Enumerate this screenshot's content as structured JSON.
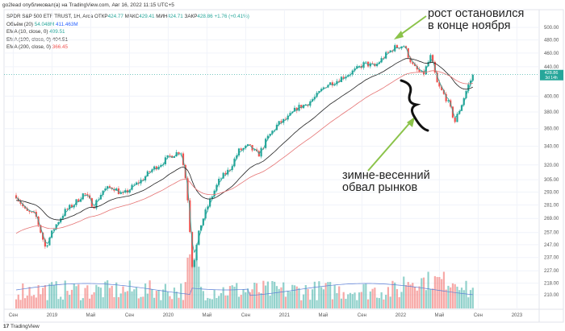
{
  "header": "go2lead опубликовал(а) на TradingView.com, Авг 16, 2022 11:15 UTC+5",
  "legend": {
    "symbol": "SPDR S&P 500 ETF TRUST, 1H, Arca",
    "open_label": "ОТКР",
    "open": "424.77",
    "high_label": "МАКС",
    "high": "429.41",
    "low_label": "МИН",
    "low": "424.71",
    "close_label": "ЗАКР",
    "close": "428.86",
    "change": "+1.76 (+0.41%)",
    "volume_label": "Объём (20)",
    "volume": "54.048M",
    "volume_ma": "411.463M",
    "ema10_label": "EMA (10, close, 0)",
    "ema10": "409.51",
    "ema100_label": "EMA (100, close, 0)",
    "ema100": "404.51",
    "ema200_label": "EMA (200, close, 0)",
    "ema200": "366.45"
  },
  "price_tag": {
    "price": "428.86",
    "countdown": "3d 14h"
  },
  "annotations": {
    "top": "рост остановился\nв конце ноября",
    "bottom": "зимне-весенний\nобвал рынков"
  },
  "footer": "TradingView",
  "colors": {
    "up": "#26a69a",
    "down": "#ef5350",
    "ema10": "#26a69a",
    "ema100": "#222222",
    "ema200": "#e57373",
    "arrow": "#8bc34a",
    "vol_ma": "#5b7fd6"
  },
  "chart_data": {
    "type": "candlestick",
    "title": "SPDR S&P 500 ETF TRUST, 1H, Arca",
    "y_ticks": [
      "500.00",
      "480.00",
      "460.00",
      "440.00",
      "400.00",
      "380.00",
      "360.00",
      "340.00",
      "320.00",
      "305.00",
      "293.00",
      "281.00",
      "269.00",
      "257.00",
      "247.00",
      "237.00",
      "227.00",
      "218.00",
      "210.00"
    ],
    "x_ticks": [
      "Сен",
      "2019",
      "Май",
      "Сен",
      "2020",
      "Май",
      "Сен",
      "2021",
      "Май",
      "Сен",
      "2022",
      "Май",
      "Сен",
      "2023"
    ],
    "ylim": [
      205,
      510
    ],
    "scale": "log",
    "price_path_month_from_sep2018": [
      [
        0,
        290
      ],
      [
        1,
        275
      ],
      [
        2,
        272
      ],
      [
        3,
        245
      ],
      [
        4,
        262
      ],
      [
        5,
        275
      ],
      [
        6,
        282
      ],
      [
        7,
        292
      ],
      [
        8,
        280
      ],
      [
        9,
        295
      ],
      [
        10,
        298
      ],
      [
        11,
        290
      ],
      [
        12,
        298
      ],
      [
        13,
        305
      ],
      [
        14,
        315
      ],
      [
        15,
        322
      ],
      [
        16,
        330
      ],
      [
        17,
        335
      ],
      [
        17.6,
        300
      ],
      [
        18.2,
        228
      ],
      [
        19,
        262
      ],
      [
        20,
        285
      ],
      [
        21,
        305
      ],
      [
        22,
        315
      ],
      [
        23,
        335
      ],
      [
        24,
        340
      ],
      [
        25,
        330
      ],
      [
        26,
        350
      ],
      [
        27,
        365
      ],
      [
        28,
        372
      ],
      [
        29,
        385
      ],
      [
        30,
        390
      ],
      [
        31,
        400
      ],
      [
        32,
        415
      ],
      [
        33,
        420
      ],
      [
        34,
        428
      ],
      [
        35,
        435
      ],
      [
        36,
        445
      ],
      [
        37,
        440
      ],
      [
        38,
        455
      ],
      [
        39,
        468
      ],
      [
        40,
        472
      ],
      [
        41,
        440
      ],
      [
        42,
        428
      ],
      [
        42.8,
        455
      ],
      [
        43.5,
        415
      ],
      [
        44.5,
        395
      ],
      [
        45.3,
        368
      ],
      [
        46,
        390
      ],
      [
        46.6,
        412
      ],
      [
        47.2,
        428.86
      ]
    ]
  }
}
